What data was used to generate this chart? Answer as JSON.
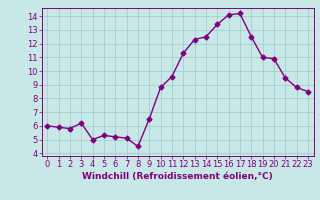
{
  "x": [
    0,
    1,
    2,
    3,
    4,
    5,
    6,
    7,
    8,
    9,
    10,
    11,
    12,
    13,
    14,
    15,
    16,
    17,
    18,
    19,
    20,
    21,
    22,
    23
  ],
  "y": [
    6.0,
    5.9,
    5.8,
    6.2,
    5.0,
    5.3,
    5.2,
    5.1,
    4.5,
    6.5,
    8.8,
    9.6,
    11.3,
    12.3,
    12.5,
    13.4,
    14.1,
    14.2,
    12.5,
    11.0,
    10.9,
    9.5,
    8.8,
    8.5
  ],
  "line_color": "#800080",
  "marker": "D",
  "marker_size": 2.5,
  "bg_color": "#c8e8e8",
  "grid_color": "#a0c8c8",
  "xlabel": "Windchill (Refroidissement éolien,°C)",
  "xlabel_color": "#800080",
  "tick_color": "#800080",
  "ylim": [
    3.8,
    14.6
  ],
  "xlim": [
    -0.5,
    23.5
  ],
  "yticks": [
    4,
    5,
    6,
    7,
    8,
    9,
    10,
    11,
    12,
    13,
    14
  ],
  "xticks": [
    0,
    1,
    2,
    3,
    4,
    5,
    6,
    7,
    8,
    9,
    10,
    11,
    12,
    13,
    14,
    15,
    16,
    17,
    18,
    19,
    20,
    21,
    22,
    23
  ],
  "axis_label_fontsize": 6.5,
  "tick_fontsize": 6.0,
  "linewidth": 1.0
}
